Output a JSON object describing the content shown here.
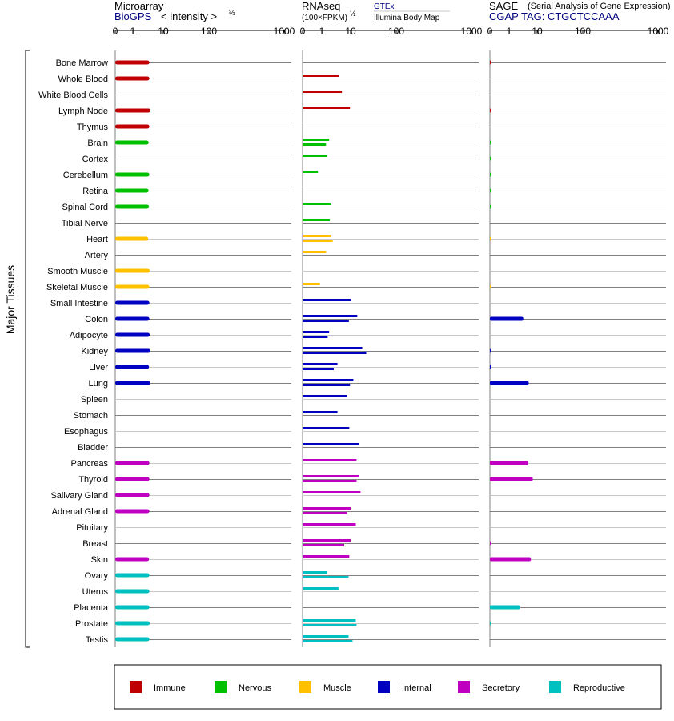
{
  "header": {
    "microarray": {
      "title": "Microarray",
      "source": "BioGPS",
      "intensity_label": "< intensity >",
      "exponent": "⅔"
    },
    "rnaseq": {
      "title": "RNAseq",
      "unit_label": "(100×FPKM)",
      "exponent": "½",
      "source_top": "GTEx",
      "source_bottom": "Illumina Body Map"
    },
    "sage": {
      "title": "SAGE",
      "subtitle": "(Serial Analysis of Gene Expression)",
      "tag_label": "CGAP  TAG: CTGCTCCAAA"
    }
  },
  "axis_ticks": [
    "0",
    "1",
    "10",
    "100",
    "1000"
  ],
  "y_axis_label": "Major Tissues",
  "colors": {
    "Immune": "#c00000",
    "Nervous": "#00c000",
    "Muscle": "#ffc000",
    "Internal": "#0000c0",
    "Secretory": "#c000c0",
    "Reproductive": "#00c0c0",
    "track_line_dark": "#808080",
    "track_line_light": "#c8c8c8",
    "title_blue": "#000080"
  },
  "legend": [
    {
      "label": "Immune",
      "color": "#c00000"
    },
    {
      "label": "Nervous",
      "color": "#00c000"
    },
    {
      "label": "Muscle",
      "color": "#ffc000"
    },
    {
      "label": "Internal",
      "color": "#0000c0"
    },
    {
      "label": "Secretory",
      "color": "#c000c0"
    },
    {
      "label": "Reproductive",
      "color": "#00c0c0"
    }
  ],
  "chart_data": {
    "type": "bar",
    "orientation": "horizontal",
    "axis_scale": "log-like (0,1,10,100,1000)",
    "xlim": [
      0,
      1000
    ],
    "tissues": [
      {
        "name": "Bone Marrow",
        "system": "Immune",
        "microarray": 3.5,
        "rnaseq": [],
        "sage": 0.05
      },
      {
        "name": "Whole Blood",
        "system": "Immune",
        "microarray": 3.5,
        "rnaseq": [
          4
        ],
        "sage": 0
      },
      {
        "name": "White Blood Cells",
        "system": "Immune",
        "microarray": 0,
        "rnaseq": [
          5
        ],
        "sage": 0
      },
      {
        "name": "Lymph Node",
        "system": "Immune",
        "microarray": 3.8,
        "rnaseq": [
          9.5
        ],
        "sage": 0.05
      },
      {
        "name": "Thymus",
        "system": "Immune",
        "microarray": 3.5,
        "rnaseq": [],
        "sage": 0
      },
      {
        "name": "Brain",
        "system": "Nervous",
        "microarray": 3.3,
        "rnaseq": [
          1.8,
          1.4
        ],
        "sage": 0.03
      },
      {
        "name": "Cortex",
        "system": "Nervous",
        "microarray": 0,
        "rnaseq": [
          1.5
        ],
        "sage": 0.03
      },
      {
        "name": "Cerebellum",
        "system": "Nervous",
        "microarray": 3.5,
        "rnaseq": [
          0.8
        ],
        "sage": 0.03
      },
      {
        "name": "Retina",
        "system": "Nervous",
        "microarray": 3.3,
        "rnaseq": [],
        "sage": 0.03
      },
      {
        "name": "Spinal Cord",
        "system": "Nervous",
        "microarray": 3.4,
        "rnaseq": [
          2.1
        ],
        "sage": 0.03
      },
      {
        "name": "Tibial Nerve",
        "system": "Nervous",
        "microarray": 0,
        "rnaseq": [
          1.9
        ],
        "sage": 0
      },
      {
        "name": "Heart",
        "system": "Muscle",
        "microarray": 3.2,
        "rnaseq": [
          2.1,
          2.4
        ],
        "sage": 0.02
      },
      {
        "name": "Artery",
        "system": "Muscle",
        "microarray": 0,
        "rnaseq": [
          1.4
        ],
        "sage": 0
      },
      {
        "name": "Smooth Muscle",
        "system": "Muscle",
        "microarray": 3.6,
        "rnaseq": [],
        "sage": 0
      },
      {
        "name": "Skeletal Muscle",
        "system": "Muscle",
        "microarray": 3.5,
        "rnaseq": [
          0.9
        ],
        "sage": 0.02
      },
      {
        "name": "Small Intestine",
        "system": "Internal",
        "microarray": 3.5,
        "rnaseq": [
          10
        ],
        "sage": 0
      },
      {
        "name": "Colon",
        "system": "Internal",
        "microarray": 3.5,
        "rnaseq": [
          14,
          8.7
        ],
        "sage": 3.2
      },
      {
        "name": "Adipocyte",
        "system": "Internal",
        "microarray": 3.6,
        "rnaseq": [
          1.8,
          1.6
        ],
        "sage": 0
      },
      {
        "name": "Kidney",
        "system": "Internal",
        "microarray": 3.8,
        "rnaseq": [
          18,
          22
        ],
        "sage": 0.05
      },
      {
        "name": "Liver",
        "system": "Internal",
        "microarray": 3.4,
        "rnaseq": [
          3.5,
          2.6
        ],
        "sage": 0.05
      },
      {
        "name": "Lung",
        "system": "Internal",
        "microarray": 3.7,
        "rnaseq": [
          11.5,
          9.5
        ],
        "sage": 5.0
      },
      {
        "name": "Spleen",
        "system": "Internal",
        "microarray": 0,
        "rnaseq": [
          7.5
        ],
        "sage": 0
      },
      {
        "name": "Stomach",
        "system": "Internal",
        "microarray": 0,
        "rnaseq": [
          3.5
        ],
        "sage": 0
      },
      {
        "name": "Esophagus",
        "system": "Internal",
        "microarray": 0,
        "rnaseq": [
          9
        ],
        "sage": 0
      },
      {
        "name": "Bladder",
        "system": "Internal",
        "microarray": 0,
        "rnaseq": [
          15
        ],
        "sage": 0
      },
      {
        "name": "Pancreas",
        "system": "Secretory",
        "microarray": 3.5,
        "rnaseq": [
          13.5
        ],
        "sage": 4.8
      },
      {
        "name": "Thyroid",
        "system": "Secretory",
        "microarray": 3.5,
        "rnaseq": [
          15,
          13.5
        ],
        "sage": 7.0
      },
      {
        "name": "Salivary Gland",
        "system": "Secretory",
        "microarray": 3.5,
        "rnaseq": [
          16.5
        ],
        "sage": 0
      },
      {
        "name": "Adrenal Gland",
        "system": "Secretory",
        "microarray": 3.5,
        "rnaseq": [
          10,
          7.5
        ],
        "sage": 0
      },
      {
        "name": "Pituitary",
        "system": "Secretory",
        "microarray": 0,
        "rnaseq": [
          13
        ],
        "sage": 0
      },
      {
        "name": "Breast",
        "system": "Secretory",
        "microarray": 0,
        "rnaseq": [
          10,
          6
        ],
        "sage": 0.05
      },
      {
        "name": "Skin",
        "system": "Secretory",
        "microarray": 3.4,
        "rnaseq": [
          9
        ],
        "sage": 6.0
      },
      {
        "name": "Ovary",
        "system": "Reproductive",
        "microarray": 3.5,
        "rnaseq": [
          1.5,
          8.5
        ],
        "sage": 0
      },
      {
        "name": "Uterus",
        "system": "Reproductive",
        "microarray": 3.5,
        "rnaseq": [
          3.8
        ],
        "sage": 0
      },
      {
        "name": "Placenta",
        "system": "Reproductive",
        "microarray": 3.5,
        "rnaseq": [],
        "sage": 2.5
      },
      {
        "name": "Prostate",
        "system": "Reproductive",
        "microarray": 3.6,
        "rnaseq": [
          13,
          13.5
        ],
        "sage": 0.03
      },
      {
        "name": "Testis",
        "system": "Reproductive",
        "microarray": 3.5,
        "rnaseq": [
          8.5,
          11
        ],
        "sage": 0
      }
    ]
  }
}
